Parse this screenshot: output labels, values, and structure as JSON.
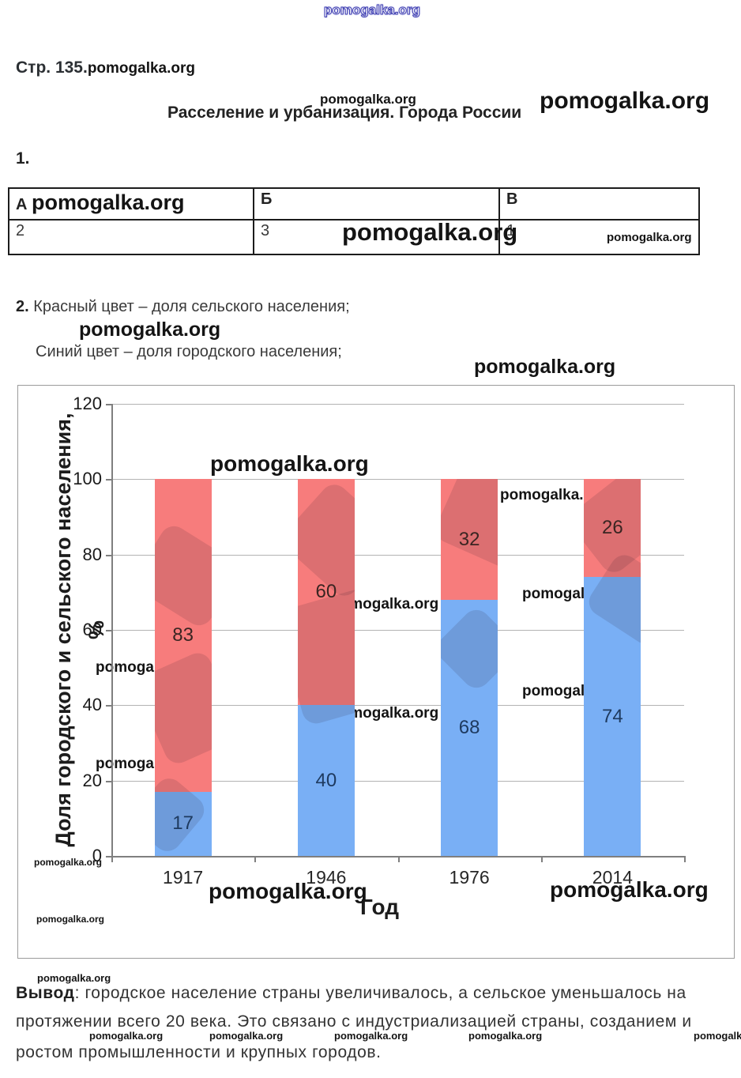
{
  "branding": {
    "watermark": "pomogalka.org"
  },
  "header": {
    "page_label": "Стр. 135.",
    "title": "Расселение и урбанизация. Города России",
    "item1_label": "1.",
    "item2_label": "2.",
    "item2_red_text": "Красный цвет – доля сельского населения;",
    "item2_blue_text": "Синий цвет – доля городского населения;"
  },
  "table": {
    "headers": [
      "А",
      "Б",
      "В"
    ],
    "values": [
      "2",
      "3",
      "1"
    ]
  },
  "chart_data": {
    "type": "bar",
    "stacked": true,
    "categories": [
      "1917",
      "1946",
      "1976",
      "2014"
    ],
    "series": [
      {
        "name": "Доля городского населения (синий)",
        "color": "#79AFF5",
        "label_color": "#1E3A5F",
        "values": [
          17,
          40,
          68,
          74
        ]
      },
      {
        "name": "Доля сельского населения (красный)",
        "color": "#F77C7C",
        "label_color": "#3A2522",
        "values": [
          83,
          60,
          32,
          26
        ]
      }
    ],
    "title": "",
    "xlabel": "Год",
    "ylabel": "Доля городского и сельского населения, %",
    "ylim": [
      0,
      120
    ],
    "ytick_step": 20,
    "grid": true,
    "legend_position": "none"
  },
  "conclusion": {
    "prefix": "Вывод",
    "line1_rest": ": городское население страны увеличивалось, а сельское уменьшалось на",
    "line2": "протяжении всего 20 века. Это связано с индустриализацией страны, созданием и",
    "line3": "ростом промышленности и крупных городов."
  }
}
